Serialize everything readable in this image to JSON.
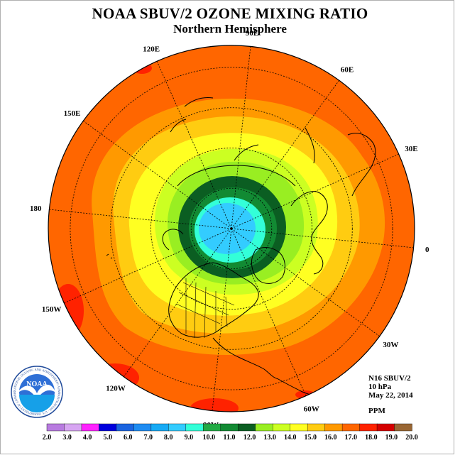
{
  "header": {
    "title": "NOAA SBUV/2 OZONE MIXING RATIO",
    "subtitle": "Northern Hemisphere"
  },
  "map": {
    "projection": "polar-stereographic-north",
    "longitude_labels": [
      {
        "text": "120E",
        "lon": 120
      },
      {
        "text": "90E",
        "lon": 90
      },
      {
        "text": "60E",
        "lon": 60
      },
      {
        "text": "150E",
        "lon": 150
      },
      {
        "text": "30E",
        "lon": 30
      },
      {
        "text": "180",
        "lon": 180
      },
      {
        "text": "0",
        "lon": 0
      },
      {
        "text": "150W",
        "lon": -150
      },
      {
        "text": "30W",
        "lon": -30
      },
      {
        "text": "120W",
        "lon": -120
      },
      {
        "text": "60W",
        "lon": -60
      },
      {
        "text": "90W",
        "lon": -90
      }
    ],
    "pole_core_value": "9.0",
    "outer_ring_value": "18.0"
  },
  "info": {
    "satellite": "N16 SBUV/2",
    "pressure": "10 hPa",
    "date": "May 22, 2014",
    "units": "PPM"
  },
  "legend": {
    "ticks": [
      "2.0",
      "3.0",
      "4.0",
      "5.0",
      "6.0",
      "7.0",
      "8.0",
      "9.0",
      "10.0",
      "11.0",
      "12.0",
      "13.0",
      "14.0",
      "15.0",
      "16.0",
      "17.0",
      "18.0",
      "19.0",
      "20.0"
    ],
    "colors": [
      "#b87be0",
      "#d7a5f2",
      "#ff22ff",
      "#0000dd",
      "#1a64e0",
      "#1e8cf2",
      "#16aaf5",
      "#33ccff",
      "#33ffd8",
      "#22aa44",
      "#128a33",
      "#0b5e22",
      "#99ee22",
      "#ccff22",
      "#ffff22",
      "#ffcc11",
      "#ff9900",
      "#ff6600",
      "#ff2200",
      "#d40000",
      "#996633"
    ],
    "band_values": [
      "2.0-3.0",
      "3.0-4.0",
      "4.0-5.0",
      "5.0-6.0",
      "6.0-7.0",
      "7.0-8.0",
      "8.0-9.0",
      "9.0-10.0",
      "10.0-11.0",
      "11.0-12.0",
      "12.0-13.0",
      "13.0-14.0",
      "14.0-15.0",
      "15.0-16.0",
      "16.0-17.0",
      "17.0-18.0",
      "18.0-19.0",
      "19.0-20.0"
    ]
  },
  "logo": {
    "text": "NOAA",
    "ring_text": "NATIONAL OCEANIC AND ATMOSPHERIC ADMINISTRATION · U.S. DEPARTMENT OF COMMERCE"
  }
}
